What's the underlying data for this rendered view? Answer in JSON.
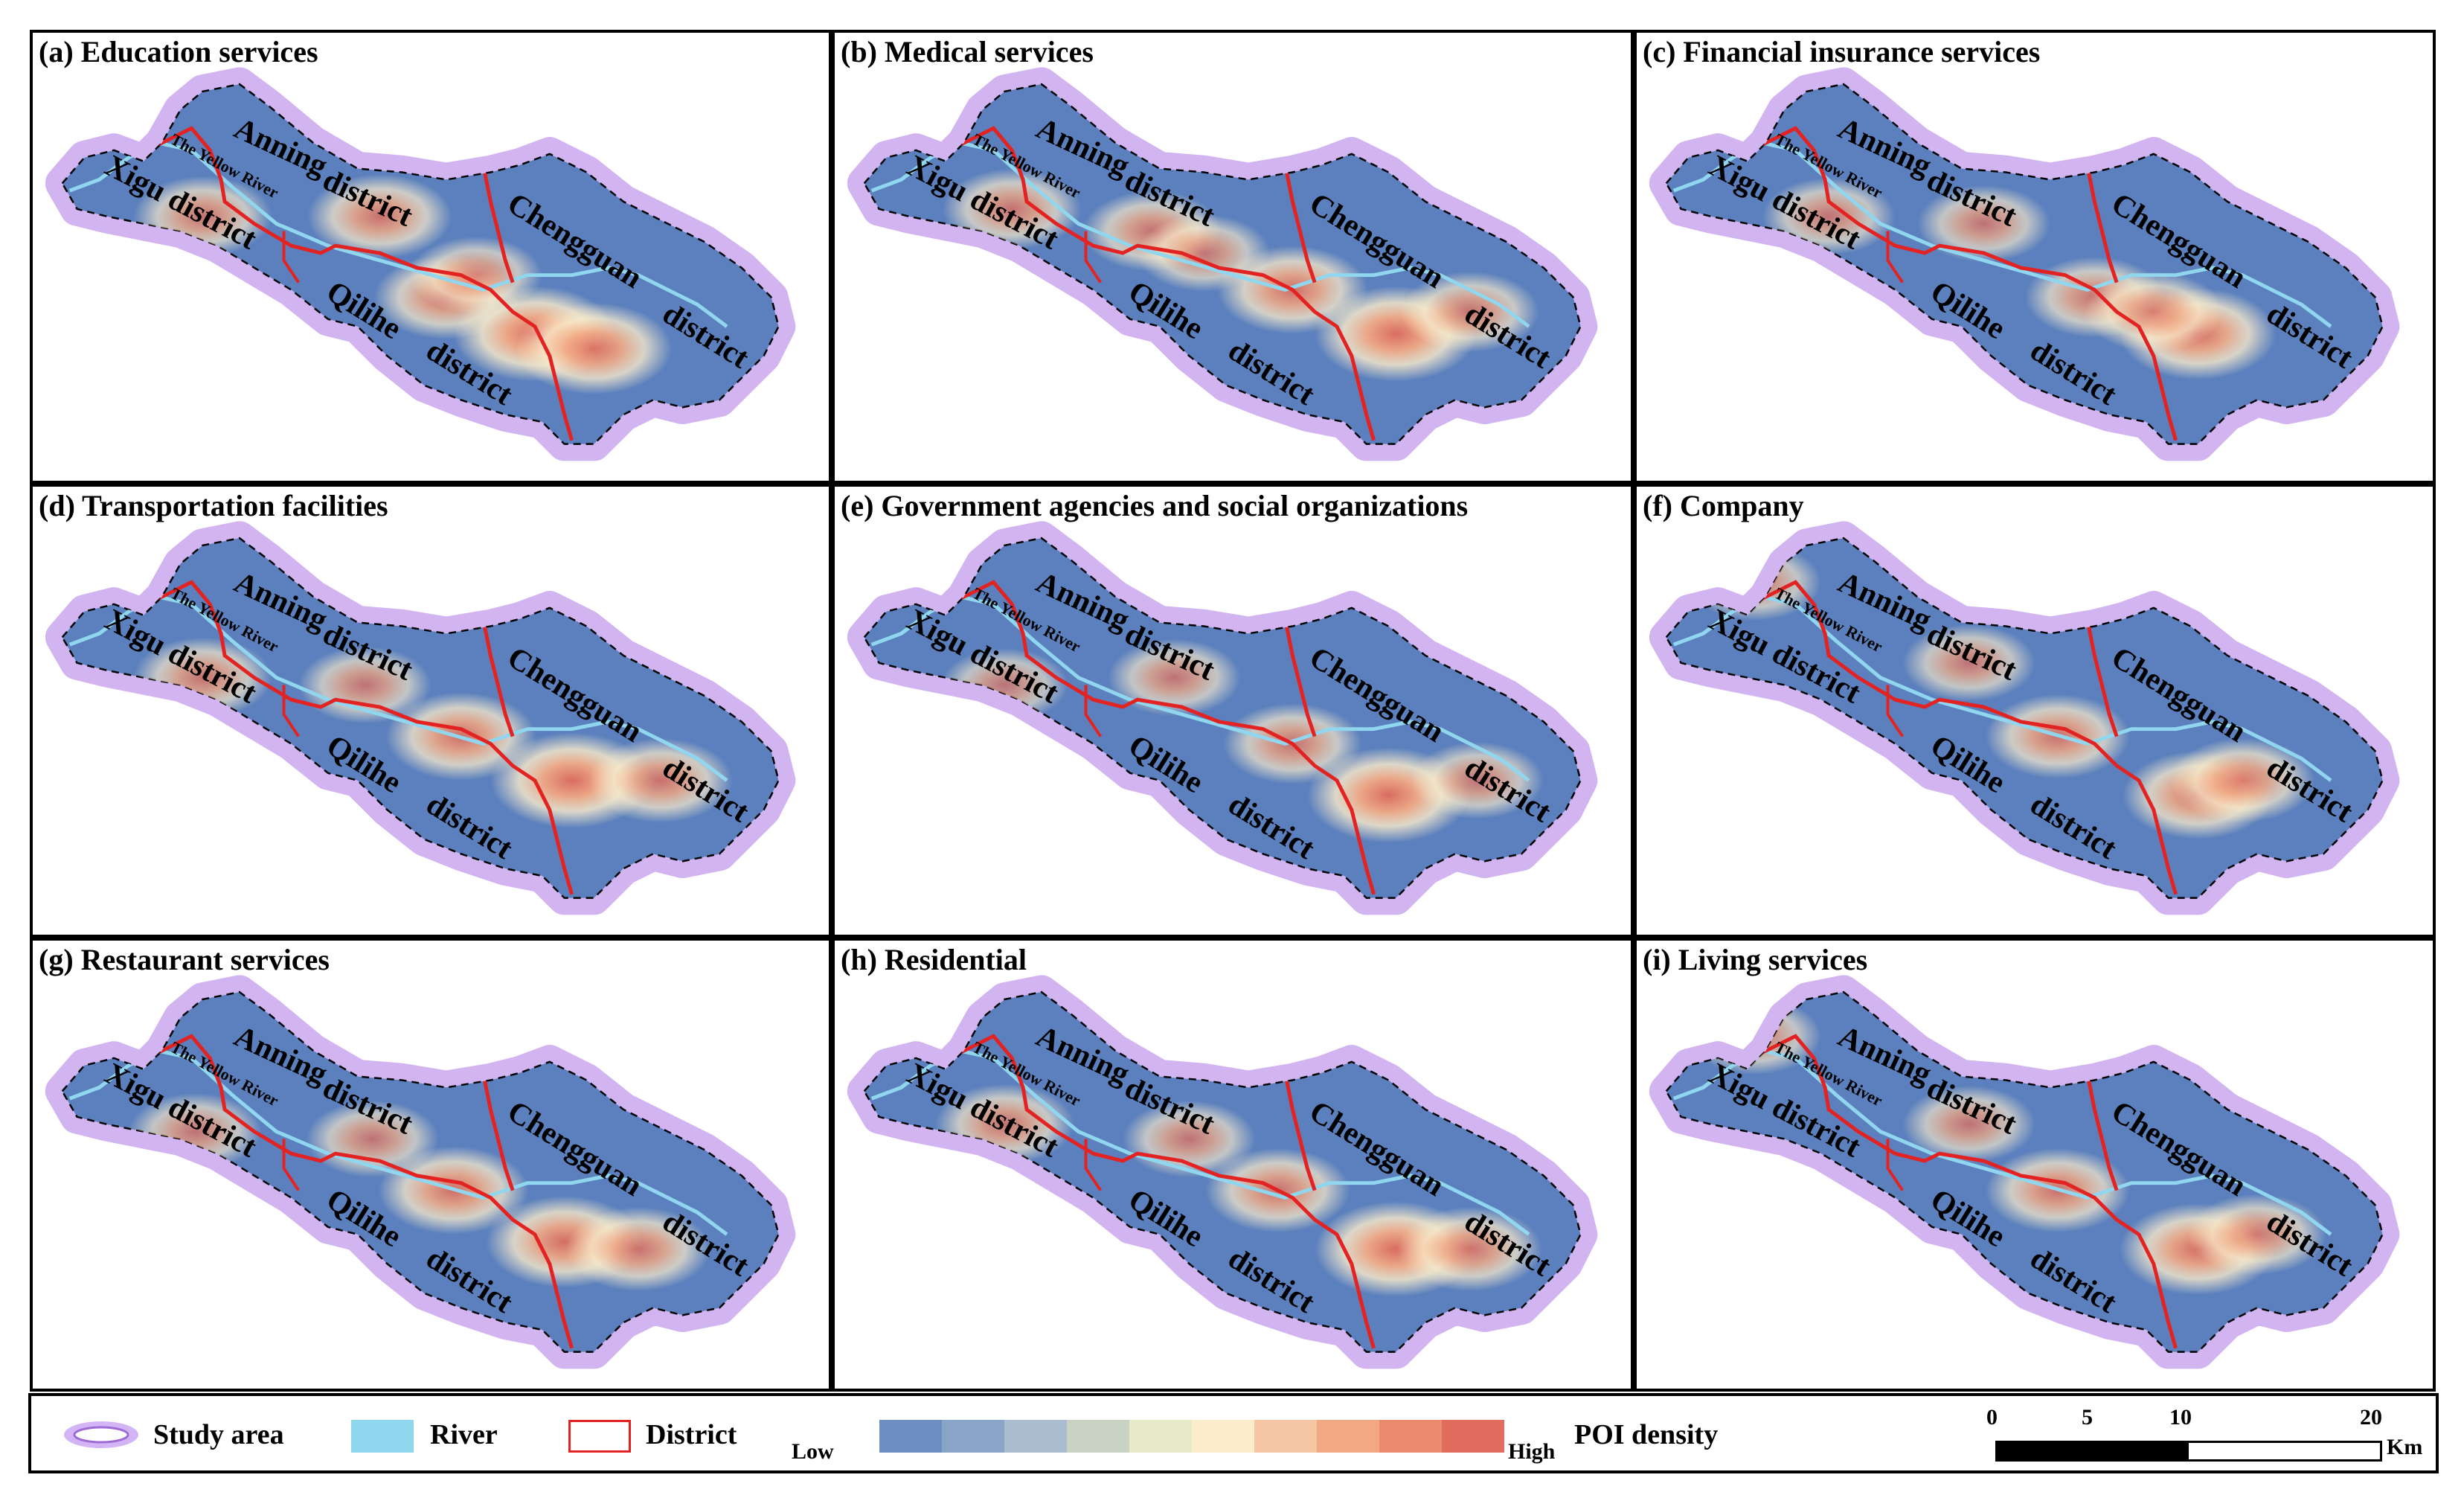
{
  "panels": [
    {
      "id": "a",
      "title": "(a) Education services"
    },
    {
      "id": "b",
      "title": "(b) Medical services"
    },
    {
      "id": "c",
      "title": "(c) Financial insurance services"
    },
    {
      "id": "d",
      "title": "(d) Transportation facilities"
    },
    {
      "id": "e",
      "title": "(e) Government agencies and social organizations"
    },
    {
      "id": "f",
      "title": "(f) Company"
    },
    {
      "id": "g",
      "title": "(g) Restaurant services"
    },
    {
      "id": "h",
      "title": "(h) Residential"
    },
    {
      "id": "i",
      "title": "(i) Living services"
    }
  ],
  "map_labels": {
    "river": "The Yellow River",
    "anning": "Anning",
    "anning_suffix": "district",
    "xigu": "Xigu district",
    "qilihe": "Qilihe",
    "qilihe_suffix": "district",
    "chengguan": "Chengguan",
    "chengguan_suffix": "district"
  },
  "legend": {
    "study_area": "Study area",
    "river": "River",
    "district": "District",
    "low": "Low",
    "high": "High",
    "poi_density": "POI density",
    "ramp_colors": [
      "#6c8ec3",
      "#8aa4c8",
      "#aabdd0",
      "#c9d3c4",
      "#e6eac9",
      "#fbeccb",
      "#f6c5a3",
      "#f2a883",
      "#ea8a6f",
      "#df6c5c"
    ],
    "scale_ticks": [
      "0",
      "5",
      "10",
      "20"
    ],
    "scale_unit": "Km"
  },
  "colors": {
    "base": "#5b80bd",
    "halo": "#c9a8ee",
    "river": "#8fd6ee",
    "district": "#e32222"
  }
}
